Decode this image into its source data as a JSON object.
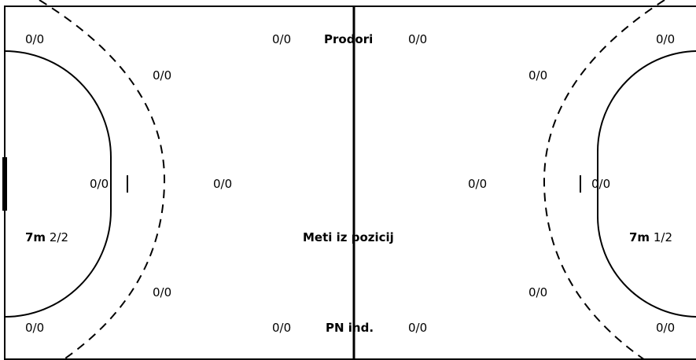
{
  "headings": {
    "breakthroughs": "Prodori",
    "positional_shots": "Meti iz pozicij",
    "fast_breaks_individual": "PN ind."
  },
  "left_half": {
    "wing_top": "0/0",
    "back_top": "0/0",
    "pivot": "0/0",
    "backcourt_center": "0/0",
    "back_bottom": "0/0",
    "wing_bottom": "0/0",
    "seven_m_label": "7m",
    "seven_m_value": "2/2",
    "breakthroughs": "0/0",
    "fast_breaks": "0/0"
  },
  "right_half": {
    "wing_top": "0/0",
    "back_top": "0/0",
    "pivot": "0/0",
    "backcourt_center": "0/0",
    "back_bottom": "0/0",
    "wing_bottom": "0/0",
    "seven_m_label": "7m",
    "seven_m_value": "1/2",
    "breakthroughs": "0/0",
    "fast_breaks": "0/0"
  }
}
